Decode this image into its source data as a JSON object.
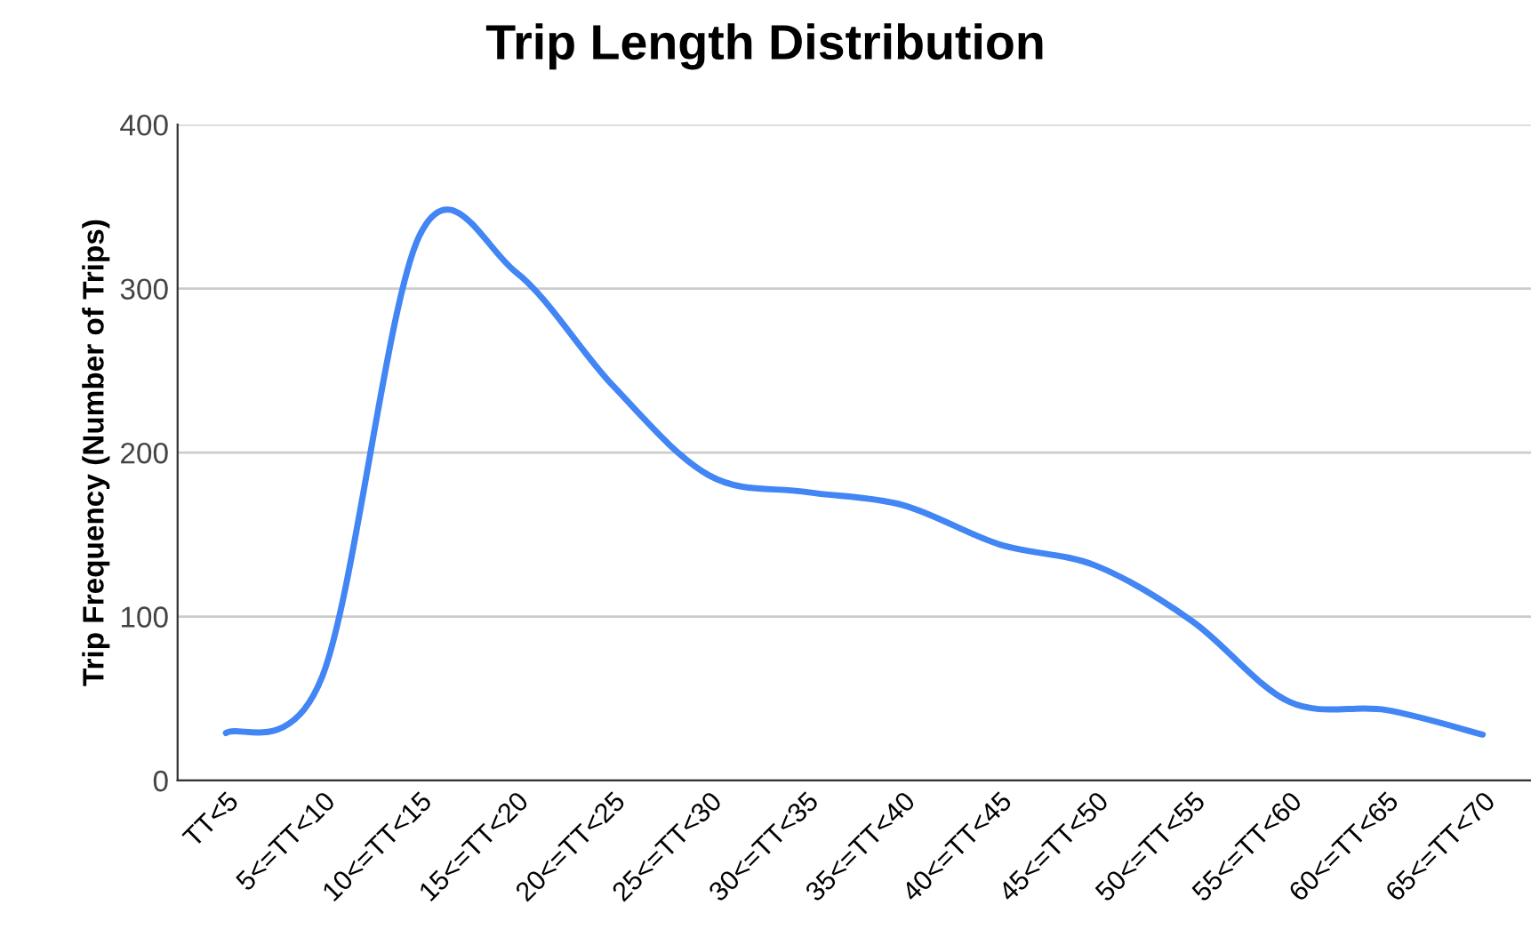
{
  "chart_data": {
    "type": "line",
    "title": "Trip Length Distribution",
    "ylabel": "Trip Frequency (Number of Trips)",
    "categories": [
      "TT<5",
      "5<=TT<10",
      "10<=TT<15",
      "15<=TT<20",
      "20<=TT<25",
      "25<=TT<30",
      "30<=TT<35",
      "35<=TT<40",
      "40<=TT<45",
      "45<=TT<50",
      "50<=TT<55",
      "55<=TT<60",
      "60<=TT<65",
      "65<=TT<70"
    ],
    "series": [
      {
        "color": "#4285f4",
        "values": [
          29,
          64,
          332,
          310,
          241,
          186,
          176,
          168,
          144,
          131,
          97,
          48,
          43,
          28
        ]
      }
    ],
    "ylim": [
      0,
      400
    ],
    "yticks": [
      0,
      100,
      200,
      300,
      400
    ],
    "grid": "y",
    "marker": "none",
    "line_style": "solid"
  }
}
